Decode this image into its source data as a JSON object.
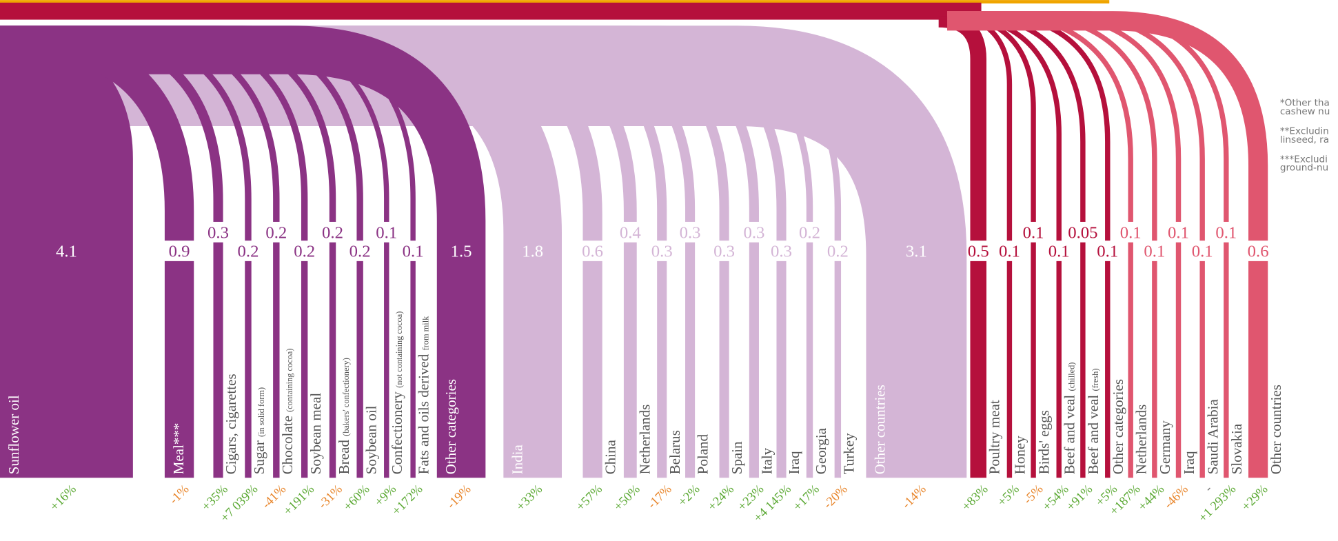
{
  "groups": [
    {
      "color": "#8b3384",
      "items": [
        {
          "label": "Sunflower oil",
          "value": 4.1,
          "change": "+16%"
        },
        {
          "label": "Meal***",
          "value": 0.9,
          "change": "-1%"
        },
        {
          "label": "Cigars, cigarettes",
          "value": 0.3,
          "change": "+35%"
        },
        {
          "label": "Sugar",
          "note": "(in solid form)",
          "value": 0.2,
          "change": "+7 039%"
        },
        {
          "label": "Chocolate",
          "note": "(containing cocoa)",
          "value": 0.2,
          "change": "-41%"
        },
        {
          "label": "Soybean meal",
          "value": 0.2,
          "change": "+191%"
        },
        {
          "label": "Bread",
          "note": "(bakers' confectionery)",
          "value": 0.2,
          "change": "-31%"
        },
        {
          "label": "Soybean oil",
          "value": 0.2,
          "change": "+60%"
        },
        {
          "label": "Confectionery",
          "note": "(not containing cocoa)",
          "value": 0.1,
          "change": "+9%"
        },
        {
          "label": "Fats and oils derived",
          "note": "from milk",
          "value": 0.1,
          "change": "+172%"
        },
        {
          "label": "Other categories",
          "value": 1.5,
          "change": "-19%"
        }
      ]
    },
    {
      "color": "#d4b5d6",
      "items": [
        {
          "label": "India",
          "value": 1.8,
          "change": "+33%"
        },
        {
          "label": "China",
          "value": 0.6,
          "change": "+57%"
        },
        {
          "label": "Netherlands",
          "value": 0.4,
          "change": "+50%"
        },
        {
          "label": "Belarus",
          "value": 0.3,
          "change": "-17%"
        },
        {
          "label": "Poland",
          "value": 0.3,
          "change": "+2%"
        },
        {
          "label": "Spain",
          "value": 0.3,
          "change": "+24%"
        },
        {
          "label": "Italy",
          "value": 0.3,
          "change": "+23%"
        },
        {
          "label": "Iraq",
          "value": 0.3,
          "change": "+4 145%"
        },
        {
          "label": "Georgia",
          "value": 0.2,
          "change": "+17%"
        },
        {
          "label": "Turkey",
          "value": 0.2,
          "change": "-20%"
        },
        {
          "label": "Other countries",
          "value": 3.1,
          "change": "-14%"
        }
      ]
    },
    {
      "color": "#b5103c",
      "items": [
        {
          "label": "Poultry meat",
          "value": 0.5,
          "change": "+83%"
        },
        {
          "label": "Honey",
          "value": 0.1,
          "change": "+5%"
        },
        {
          "label": "Birds' eggs",
          "value": 0.1,
          "change": "-5%"
        },
        {
          "label": "Beef and veal",
          "note": "(chilled)",
          "value": 0.1,
          "change": "+54%"
        },
        {
          "label": "Beef and veal",
          "note": "(fresh)",
          "value": 0.05,
          "change": "+91%"
        },
        {
          "label": "Other categories",
          "value": 0.1,
          "change": "+5%"
        }
      ]
    },
    {
      "color": "#e0566f",
      "items": [
        {
          "label": "Netherlands",
          "value": 0.1,
          "change": "+187%"
        },
        {
          "label": "Germany",
          "value": 0.1,
          "change": "+44%"
        },
        {
          "label": "Iraq",
          "value": 0.1,
          "change": "-46%"
        },
        {
          "label": "Saudi Arabia",
          "value": 0.1,
          "change": "-"
        },
        {
          "label": "Slovakia",
          "value": 0.1,
          "change": "+1 293%"
        },
        {
          "label": "Other countries",
          "value": 0.6,
          "change": "+29%"
        }
      ]
    }
  ],
  "notes": [
    [
      "*Other tha",
      "cashew nu"
    ],
    [
      "**Excludin",
      "linseed, ra"
    ],
    [
      "***Excludi",
      "ground-nu"
    ]
  ]
}
